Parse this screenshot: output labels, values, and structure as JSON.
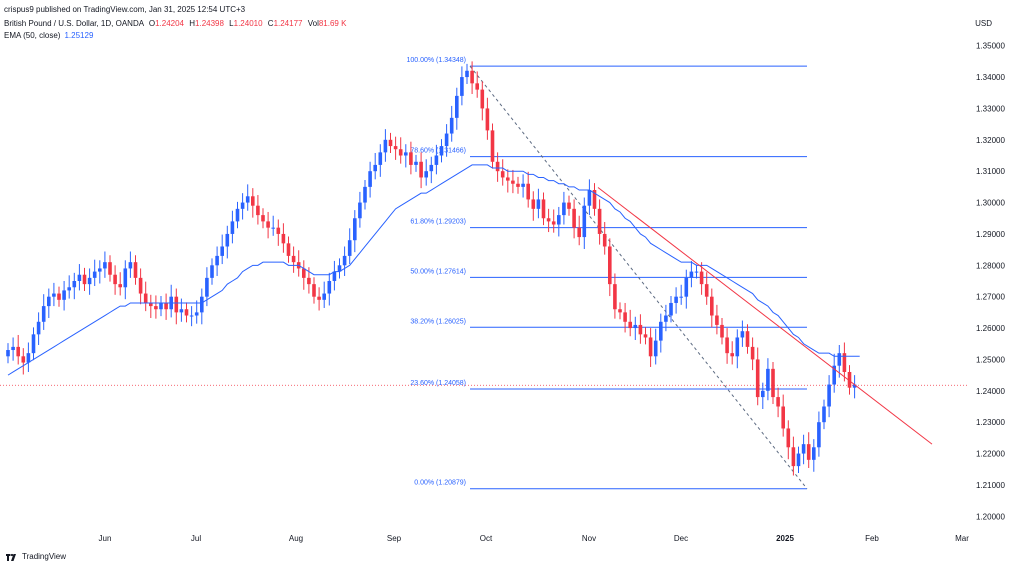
{
  "header": {
    "published": "crispus9 published on TradingView.com, Jan 31, 2025 12:54 UTC+3",
    "symbol": "British Pound / U.S. Dollar, 1D, OANDA",
    "ohlc": {
      "o_label": "O",
      "o": "1.24204",
      "h_label": "H",
      "h": "1.24398",
      "l_label": "L",
      "l": "1.24010",
      "c_label": "C",
      "c": "1.24177",
      "vol_label": "Vol",
      "vol": "81.69 K"
    },
    "ema_label": "EMA (50, close)",
    "ema_value": "1.25129"
  },
  "axis": {
    "currency": "USD"
  },
  "footer": {
    "brand": "TradingView"
  },
  "colors": {
    "up": "#2962ff",
    "down": "#f23645",
    "ema": "#2962ff",
    "fib": "#2962ff",
    "trendline": "#f23645"
  },
  "chart_data": {
    "type": "candlestick",
    "ylim": [
      1.195,
      1.355
    ],
    "y_ticks": [
      "1.35000",
      "1.34000",
      "1.33000",
      "1.32000",
      "1.31000",
      "1.30000",
      "1.29000",
      "1.28000",
      "1.27000",
      "1.26000",
      "1.25000",
      "1.24000",
      "1.23000",
      "1.22000",
      "1.21000",
      "1.20000"
    ],
    "x_ticks": [
      {
        "label": "Jun",
        "bold": false
      },
      {
        "label": "Jul",
        "bold": false
      },
      {
        "label": "Aug",
        "bold": false
      },
      {
        "label": "Sep",
        "bold": false
      },
      {
        "label": "Oct",
        "bold": false
      },
      {
        "label": "Nov",
        "bold": false
      },
      {
        "label": "Dec",
        "bold": false
      },
      {
        "label": "2025",
        "bold": true
      },
      {
        "label": "Feb",
        "bold": false
      },
      {
        "label": "Mar",
        "bold": false
      }
    ],
    "fibonacci": [
      {
        "label": "100.00% (1.34348)",
        "value": 1.34348
      },
      {
        "label": "78.60% (1.31466)",
        "value": 1.31466
      },
      {
        "label": "61.80% (1.29203)",
        "value": 1.29203
      },
      {
        "label": "50.00% (1.27614)",
        "value": 1.27614
      },
      {
        "label": "38.20% (1.26025)",
        "value": 1.26025
      },
      {
        "label": "23.60% (1.24058)",
        "value": 1.24058
      },
      {
        "label": "0.00% (1.20879)",
        "value": 1.20879
      }
    ],
    "last_price": 1.24177,
    "close_series": [
      1.253,
      1.254,
      1.251,
      1.249,
      1.252,
      1.258,
      1.262,
      1.267,
      1.27,
      1.271,
      1.269,
      1.272,
      1.273,
      1.275,
      1.277,
      1.274,
      1.276,
      1.278,
      1.279,
      1.281,
      1.277,
      1.274,
      1.273,
      1.279,
      1.281,
      1.276,
      1.271,
      1.268,
      1.267,
      1.266,
      1.268,
      1.266,
      1.27,
      1.265,
      1.266,
      1.264,
      1.264,
      1.265,
      1.27,
      1.276,
      1.28,
      1.283,
      1.286,
      1.29,
      1.294,
      1.298,
      1.3,
      1.302,
      1.299,
      1.296,
      1.294,
      1.292,
      1.292,
      1.29,
      1.287,
      1.283,
      1.281,
      1.279,
      1.276,
      1.274,
      1.27,
      1.269,
      1.271,
      1.275,
      1.278,
      1.28,
      1.283,
      1.288,
      1.295,
      1.3,
      1.305,
      1.31,
      1.312,
      1.316,
      1.32,
      1.318,
      1.317,
      1.315,
      1.316,
      1.312,
      1.313,
      1.308,
      1.31,
      1.312,
      1.315,
      1.318,
      1.322,
      1.327,
      1.334,
      1.34,
      1.342,
      1.338,
      1.336,
      1.33,
      1.323,
      1.313,
      1.31,
      1.308,
      1.307,
      1.306,
      1.305,
      1.306,
      1.301,
      1.298,
      1.301,
      1.295,
      1.294,
      1.293,
      1.296,
      1.3,
      1.298,
      1.292,
      1.289,
      1.299,
      1.304,
      1.298,
      1.29,
      1.286,
      1.274,
      1.266,
      1.265,
      1.262,
      1.26,
      1.261,
      1.258,
      1.257,
      1.251,
      1.256,
      1.262,
      1.264,
      1.268,
      1.27,
      1.27,
      1.276,
      1.278,
      1.278,
      1.274,
      1.27,
      1.264,
      1.261,
      1.257,
      1.252,
      1.251,
      1.257,
      1.259,
      1.254,
      1.25,
      1.238,
      1.24,
      1.247,
      1.238,
      1.235,
      1.228,
      1.222,
      1.216,
      1.22,
      1.223,
      1.218,
      1.222,
      1.23,
      1.235,
      1.242,
      1.248,
      1.252,
      1.246,
      1.241,
      1.242
    ],
    "ema_series": [
      1.245,
      1.246,
      1.247,
      1.248,
      1.249,
      1.25,
      1.251,
      1.252,
      1.253,
      1.254,
      1.255,
      1.256,
      1.257,
      1.258,
      1.259,
      1.26,
      1.261,
      1.262,
      1.263,
      1.264,
      1.265,
      1.266,
      1.267,
      1.267,
      1.268,
      1.268,
      1.268,
      1.268,
      1.268,
      1.268,
      1.268,
      1.268,
      1.268,
      1.268,
      1.268,
      1.268,
      1.268,
      1.268,
      1.268,
      1.269,
      1.27,
      1.271,
      1.272,
      1.274,
      1.275,
      1.276,
      1.278,
      1.279,
      1.28,
      1.28,
      1.281,
      1.281,
      1.281,
      1.281,
      1.281,
      1.28,
      1.28,
      1.28,
      1.279,
      1.278,
      1.277,
      1.277,
      1.277,
      1.277,
      1.278,
      1.278,
      1.279,
      1.28,
      1.282,
      1.284,
      1.286,
      1.288,
      1.29,
      1.292,
      1.294,
      1.296,
      1.298,
      1.299,
      1.3,
      1.301,
      1.302,
      1.303,
      1.303,
      1.304,
      1.305,
      1.306,
      1.307,
      1.308,
      1.309,
      1.31,
      1.311,
      1.312,
      1.312,
      1.312,
      1.312,
      1.311,
      1.311,
      1.311,
      1.31,
      1.31,
      1.31,
      1.31,
      1.309,
      1.309,
      1.308,
      1.308,
      1.307,
      1.307,
      1.306,
      1.306,
      1.305,
      1.305,
      1.304,
      1.304,
      1.304,
      1.303,
      1.302,
      1.301,
      1.3,
      1.298,
      1.297,
      1.295,
      1.294,
      1.292,
      1.29,
      1.289,
      1.287,
      1.286,
      1.285,
      1.284,
      1.283,
      1.282,
      1.281,
      1.281,
      1.281,
      1.28,
      1.28,
      1.28,
      1.279,
      1.278,
      1.277,
      1.276,
      1.275,
      1.274,
      1.273,
      1.272,
      1.271,
      1.269,
      1.268,
      1.267,
      1.265,
      1.264,
      1.262,
      1.26,
      1.258,
      1.257,
      1.255,
      1.254,
      1.253,
      1.252,
      1.252,
      1.252,
      1.251,
      1.251,
      1.251,
      1.251,
      1.251,
      1.251
    ],
    "trendline": {
      "from": 1.3048,
      "to": 1.223
    }
  }
}
